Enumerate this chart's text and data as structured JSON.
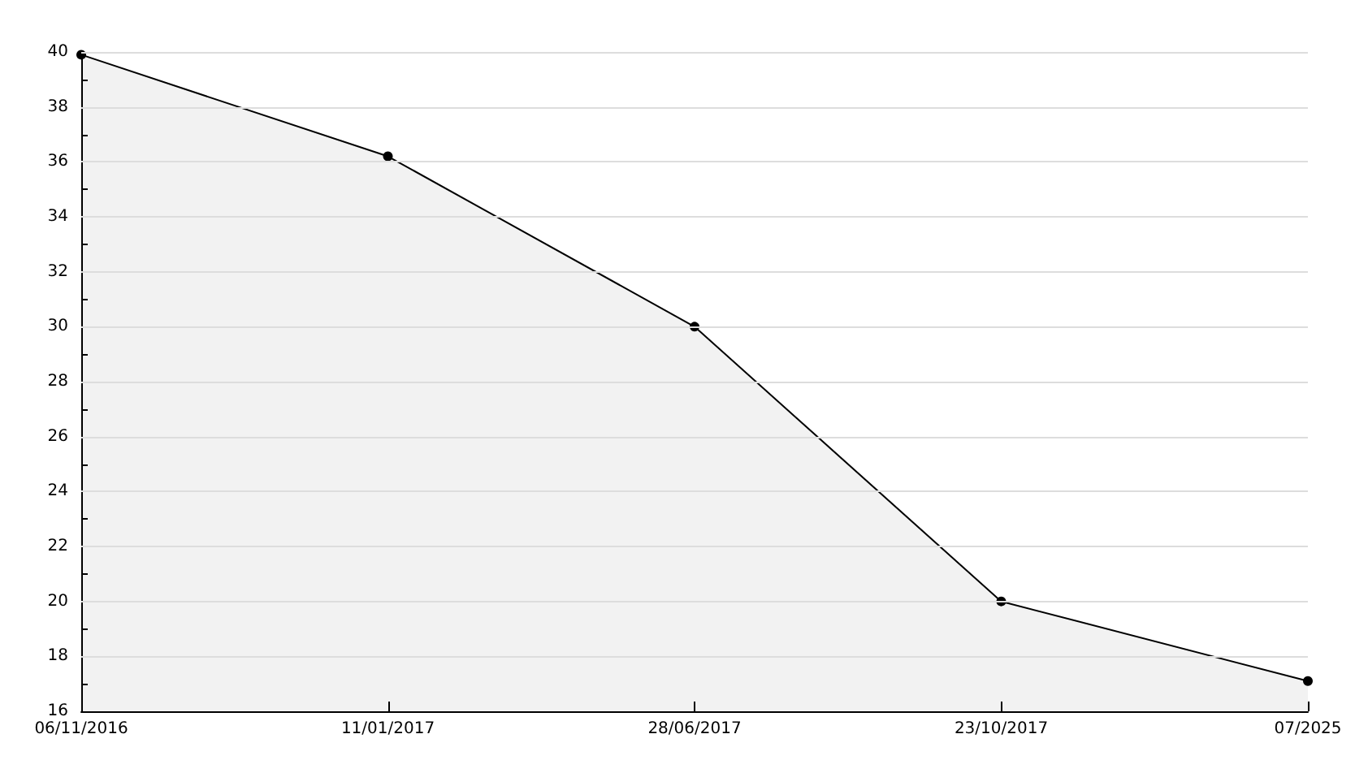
{
  "chart_data": {
    "type": "area",
    "categories": [
      "06/11/2016",
      "11/01/2017",
      "28/06/2017",
      "23/10/2017",
      "07/2025"
    ],
    "series": [
      {
        "color": "#000000",
        "values": [
          39.9,
          36.2,
          30,
          20,
          17.1
        ]
      }
    ],
    "ylim": [
      16,
      40
    ],
    "yticks": [
      16,
      {
        "value": 17,
        "label": null
      },
      18,
      {
        "value": 19,
        "label": null
      },
      20,
      {
        "value": 21,
        "label": null
      },
      22,
      {
        "value": 23,
        "label": null
      },
      24,
      {
        "value": 25,
        "label": null
      },
      26,
      {
        "value": 27,
        "label": null
      },
      28,
      {
        "value": 29,
        "label": null
      },
      30,
      {
        "value": 31,
        "label": null
      },
      32,
      {
        "value": 33,
        "label": null
      },
      34,
      {
        "value": 35,
        "label": null
      },
      36,
      {
        "value": 37,
        "label": null
      },
      38,
      {
        "value": 39,
        "label": null
      },
      40
    ],
    "grid": "y",
    "marker": "circle",
    "line_style": "solid"
  }
}
